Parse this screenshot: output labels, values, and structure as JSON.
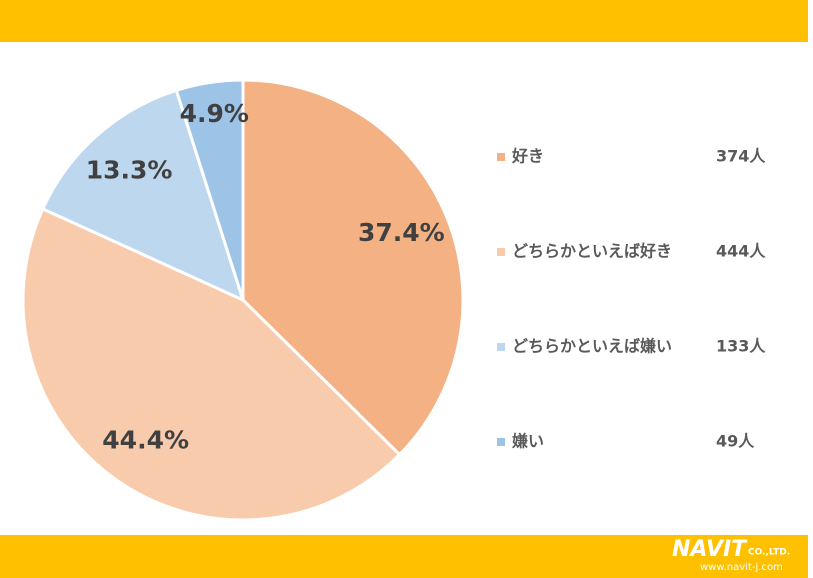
{
  "chart_data": {
    "type": "pie",
    "categories": [
      "好き",
      "どちらかといえば好き",
      "どちらかといえば嫌い",
      "嫌い"
    ],
    "values": [
      37.4,
      44.4,
      13.3,
      4.9
    ],
    "value_labels": [
      "37.4%",
      "44.4%",
      "13.3%",
      "4.9%"
    ],
    "colors": [
      "#F4B183",
      "#F8CBAD",
      "#BDD7EE",
      "#9DC3E6"
    ],
    "counts": [
      374,
      444,
      133,
      49
    ],
    "count_labels": [
      "374人",
      "444人",
      "133人",
      "49人"
    ]
  },
  "footer": {
    "logo": "NAVIT",
    "company": "CO.,LTD.",
    "url": "www.navit-j.com"
  }
}
